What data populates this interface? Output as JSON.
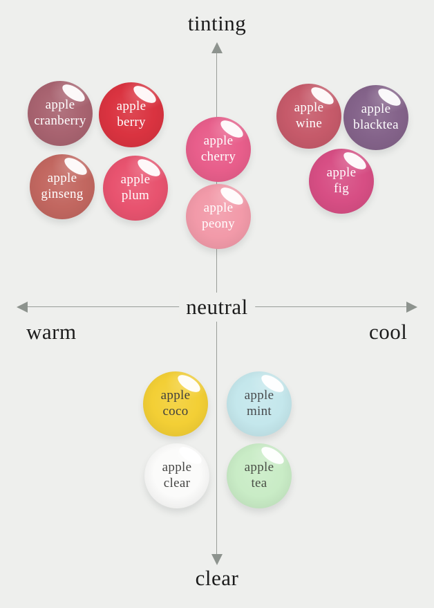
{
  "axes": {
    "top_label": "tinting",
    "bottom_label": "clear",
    "left_label": "warm",
    "right_label": "cool",
    "center_label": "neutral",
    "line_color": "#989c98",
    "label_color": "#1b1b1b"
  },
  "swatches": [
    {
      "id": "cranberry",
      "line1": "apple",
      "line2": "cranberry",
      "color": "#a86370",
      "text_color": "#ffffff"
    },
    {
      "id": "berry",
      "line1": "apple",
      "line2": "berry",
      "color": "#da3340",
      "text_color": "#ffffff"
    },
    {
      "id": "ginseng",
      "line1": "apple",
      "line2": "ginseng",
      "color": "#c26760",
      "text_color": "#ffffff"
    },
    {
      "id": "plum",
      "line1": "apple",
      "line2": "plum",
      "color": "#e8536f",
      "text_color": "#ffffff"
    },
    {
      "id": "cherry",
      "line1": "apple",
      "line2": "cherry",
      "color": "#e85e8b",
      "text_color": "#ffffff"
    },
    {
      "id": "peony",
      "line1": "apple",
      "line2": "peony",
      "color": "#f29aa9",
      "text_color": "#ffffff"
    },
    {
      "id": "wine",
      "line1": "apple",
      "line2": "wine",
      "color": "#c65a6a",
      "text_color": "#ffffff"
    },
    {
      "id": "blacktea",
      "line1": "apple",
      "line2": "blacktea",
      "color": "#84638a",
      "text_color": "#ffffff"
    },
    {
      "id": "fig",
      "line1": "apple",
      "line2": "fig",
      "color": "#d74e84",
      "text_color": "#ffffff"
    },
    {
      "id": "coco",
      "line1": "apple",
      "line2": "coco",
      "color": "#f3cf35",
      "text_color": "#3f3f3d"
    },
    {
      "id": "mint",
      "line1": "apple",
      "line2": "mint",
      "color": "#c4e7ec",
      "text_color": "#474a4c"
    },
    {
      "id": "clear",
      "line1": "apple",
      "line2": "clear",
      "color": "#fbfbfa",
      "text_color": "#454543"
    },
    {
      "id": "tea",
      "line1": "apple",
      "line2": "tea",
      "color": "#c9ecc6",
      "text_color": "#4a4f47"
    }
  ],
  "chart_data": {
    "type": "scatter",
    "title": "",
    "xlabel_left": "warm",
    "xlabel_right": "cool",
    "ylabel_top": "tinting",
    "ylabel_bottom": "clear",
    "center_label": "neutral",
    "xlim": [
      -1,
      1
    ],
    "ylim": [
      -1,
      1
    ],
    "grid": false,
    "legend_position": "none",
    "points": [
      {
        "label": "apple cranberry",
        "x": -0.79,
        "y": 0.74,
        "color": "#a86370"
      },
      {
        "label": "apple berry",
        "x": -0.43,
        "y": 0.74,
        "color": "#da3340"
      },
      {
        "label": "apple ginseng",
        "x": -0.78,
        "y": 0.46,
        "color": "#c26760"
      },
      {
        "label": "apple plum",
        "x": -0.41,
        "y": 0.46,
        "color": "#e8536f"
      },
      {
        "label": "apple cherry",
        "x": 0.01,
        "y": 0.6,
        "color": "#e85e8b"
      },
      {
        "label": "apple peony",
        "x": 0.01,
        "y": 0.35,
        "color": "#f29aa9"
      },
      {
        "label": "apple wine",
        "x": 0.46,
        "y": 0.73,
        "color": "#c65a6a"
      },
      {
        "label": "apple blacktea",
        "x": 0.8,
        "y": 0.72,
        "color": "#84638a"
      },
      {
        "label": "apple fig",
        "x": 0.63,
        "y": 0.48,
        "color": "#d74e84"
      },
      {
        "label": "apple coco",
        "x": -0.21,
        "y": -0.37,
        "color": "#f3cf35"
      },
      {
        "label": "apple mint",
        "x": 0.21,
        "y": -0.37,
        "color": "#c4e7ec"
      },
      {
        "label": "apple clear",
        "x": -0.2,
        "y": -0.65,
        "color": "#fbfbfa"
      },
      {
        "label": "apple tea",
        "x": 0.21,
        "y": -0.65,
        "color": "#c9ecc6"
      }
    ]
  }
}
